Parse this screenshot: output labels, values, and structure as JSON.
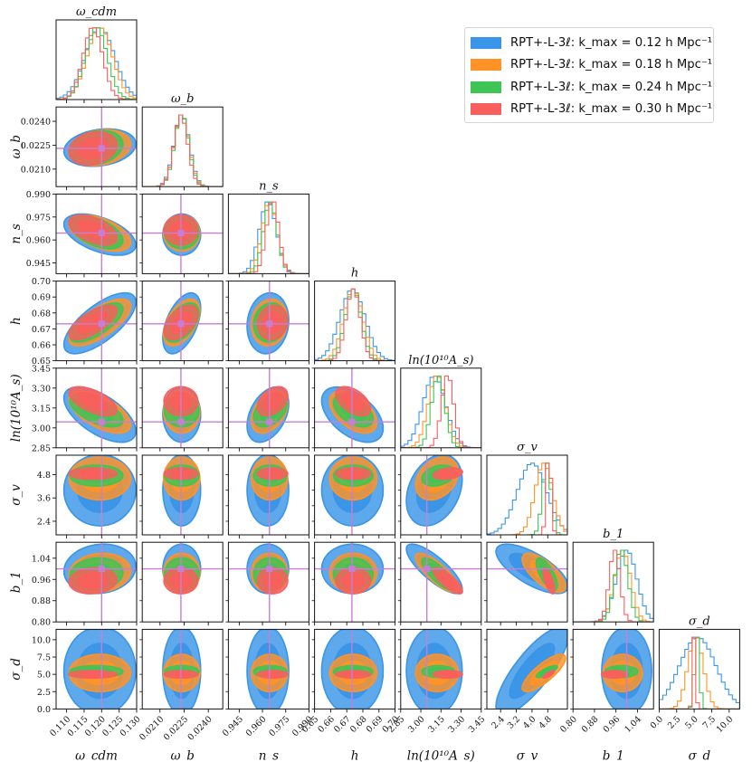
{
  "chart_data": {
    "type": "corner",
    "parameters": [
      {
        "name": "omega_cdm",
        "label": "ω_cdm",
        "truth": 0.12,
        "range": [
          0.107,
          0.13
        ],
        "ticks": [
          0.11,
          0.115,
          0.12,
          0.125,
          0.13
        ],
        "tick_labels": [
          "0.110",
          "0.115",
          "0.120",
          "0.125",
          "0.130"
        ]
      },
      {
        "name": "omega_b",
        "label": "ω_b",
        "truth": 0.0223,
        "range": [
          0.0199,
          0.0249
        ],
        "ticks": [
          0.021,
          0.0225,
          0.024
        ],
        "tick_labels": [
          "0.0210",
          "0.0225",
          "0.0240"
        ]
      },
      {
        "name": "n_s",
        "label": "n_s",
        "truth": 0.9645,
        "range": [
          0.938,
          0.99
        ],
        "ticks": [
          0.945,
          0.96,
          0.975,
          0.99
        ],
        "tick_labels": [
          "0.945",
          "0.960",
          "0.975",
          "0.990"
        ]
      },
      {
        "name": "h",
        "label": "h",
        "truth": 0.6732,
        "range": [
          0.65,
          0.7
        ],
        "ticks": [
          0.65,
          0.66,
          0.67,
          0.68,
          0.69,
          0.7
        ],
        "tick_labels": [
          "0.65",
          "0.66",
          "0.67",
          "0.68",
          "0.69",
          "0.70"
        ]
      },
      {
        "name": "ln10As",
        "label": "ln(10¹⁰A_s)",
        "truth": 3.0448,
        "range": [
          2.85,
          3.45
        ],
        "ticks": [
          2.85,
          3.0,
          3.15,
          3.3,
          3.45
        ],
        "tick_labels": [
          "2.85",
          "3.00",
          "3.15",
          "3.30",
          "3.45"
        ]
      },
      {
        "name": "sigma_v",
        "label": "σ_v",
        "truth": null,
        "range": [
          1.7,
          5.8
        ],
        "ticks": [
          2.4,
          3.2,
          4.0,
          4.8
        ],
        "tick_labels": [
          "2.4",
          "3.2",
          "4.0",
          "4.8"
        ],
        "y_ticks": [
          2.4,
          3.6,
          4.8
        ],
        "y_tick_labels": [
          "2.4",
          "3.6",
          "4.8"
        ]
      },
      {
        "name": "b1",
        "label": "b_1",
        "truth": 1.0,
        "range": [
          0.8,
          1.1
        ],
        "ticks": [
          0.8,
          0.88,
          0.96,
          1.04
        ],
        "tick_labels": [
          "0.80",
          "0.88",
          "0.96",
          "1.04"
        ]
      },
      {
        "name": "sigma_d",
        "label": "σ_d",
        "truth": null,
        "range": [
          0.0,
          11.5
        ],
        "ticks": [
          0.0,
          2.5,
          5.0,
          7.5,
          10.0
        ],
        "tick_labels": [
          "0.0",
          "2.5",
          "5.0",
          "7.5",
          "10.0"
        ]
      }
    ],
    "y_tick_overrides": {
      "omega_cdm": null,
      "omega_b": {
        "ticks": [
          0.021,
          0.0225,
          0.024
        ],
        "tick_labels": [
          "0.0210",
          "0.0225",
          "0.0240"
        ]
      },
      "n_s": {
        "ticks": [
          0.945,
          0.96,
          0.975,
          0.99
        ],
        "tick_labels": [
          "0.945",
          "0.960",
          "0.975",
          "0.990"
        ]
      },
      "h": {
        "ticks": [
          0.65,
          0.66,
          0.67,
          0.68,
          0.69,
          0.7
        ],
        "tick_labels": [
          "0.65",
          "0.66",
          "0.67",
          "0.68",
          "0.69",
          "0.70"
        ]
      },
      "ln10As": {
        "ticks": [
          2.85,
          3.0,
          3.15,
          3.3,
          3.45
        ],
        "tick_labels": [
          "2.85",
          "3.00",
          "3.15",
          "3.30",
          "3.45"
        ]
      },
      "b1": {
        "ticks": [
          0.8,
          0.88,
          0.96,
          1.04
        ],
        "tick_labels": [
          "0.80",
          "0.88",
          "0.96",
          "1.04"
        ]
      },
      "sigma_d": {
        "ticks": [
          0.0,
          2.5,
          5.0,
          7.5,
          10.0
        ],
        "tick_labels": [
          "0.0",
          "2.5",
          "5.0",
          "7.5",
          "10.0"
        ]
      }
    },
    "series": [
      {
        "name": "RPT+-L-3ℓ: k_max = 0.12 h Mpc⁻¹",
        "color": "#3a95e8",
        "means": [
          0.1195,
          0.02235,
          0.9635,
          0.6735,
          3.1,
          4.0,
          1.0,
          5.5
        ],
        "sigmas": [
          0.0042,
          0.00048,
          0.0055,
          0.0078,
          0.085,
          0.75,
          0.038,
          2.6
        ]
      },
      {
        "name": "RPT+-L-3ℓ: k_max = 0.18 h Mpc⁻¹",
        "color": "#ff9327",
        "means": [
          0.1195,
          0.02235,
          0.9645,
          0.674,
          3.12,
          4.6,
          0.985,
          5.2
        ],
        "sigmas": [
          0.0036,
          0.00046,
          0.0048,
          0.006,
          0.065,
          0.45,
          0.03,
          1.1
        ]
      },
      {
        "name": "RPT+-L-3ℓ: k_max = 0.24 h Mpc⁻¹",
        "color": "#3ec556",
        "means": [
          0.1185,
          0.02235,
          0.965,
          0.674,
          3.13,
          4.75,
          0.98,
          5.4
        ],
        "sigmas": [
          0.0031,
          0.00044,
          0.0044,
          0.005,
          0.05,
          0.22,
          0.025,
          0.35
        ]
      },
      {
        "name": "RPT+-L-3ℓ: k_max = 0.30 h Mpc⁻¹",
        "color": "#f95f5c",
        "means": [
          0.1175,
          0.0223,
          0.9665,
          0.674,
          3.2,
          4.85,
          0.955,
          5.0
        ],
        "sigmas": [
          0.0028,
          0.00043,
          0.004,
          0.0044,
          0.045,
          0.12,
          0.02,
          0.22
        ]
      }
    ],
    "correlations": {
      "omega_cdm-omega_b": 0.2,
      "omega_cdm-n_s": -0.5,
      "omega_cdm-h": 0.7,
      "omega_cdm-ln10As": -0.6,
      "omega_cdm-b1": 0.1,
      "omega_b-h": 0.5,
      "n_s-h": 0.1,
      "n_s-ln10As": 0.4,
      "h-ln10As": -0.5,
      "ln10As-sigma_v": 0.3,
      "ln10As-b1": -0.8,
      "sigma_v-b1": -0.7,
      "sigma_v-sigma_d": 0.8
    },
    "truth_line_color": "#c77ed6",
    "legend_position": "top-right"
  }
}
